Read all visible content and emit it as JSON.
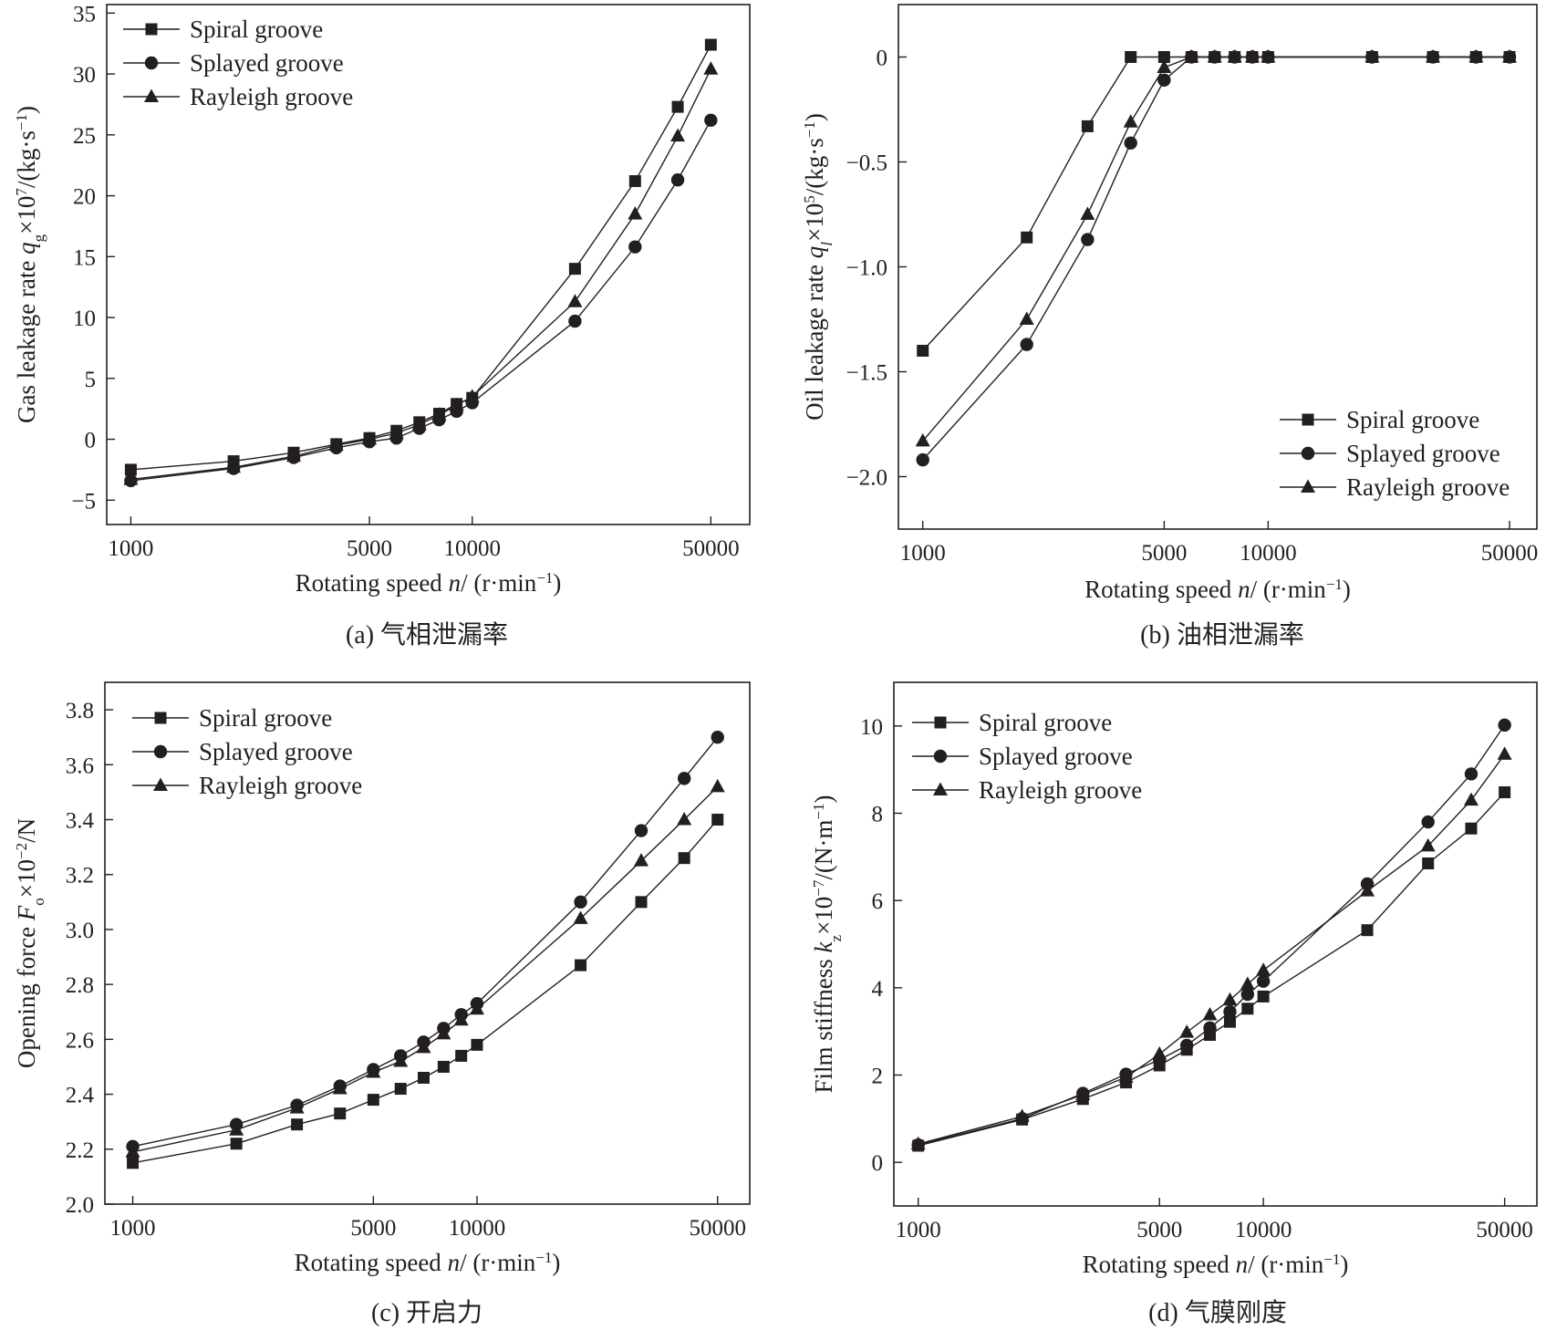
{
  "chart_data": [
    {
      "type": "line",
      "panel": "a",
      "xscale": "log",
      "x": [
        1000,
        2000,
        3000,
        4000,
        5000,
        6000,
        7000,
        8000,
        9000,
        10000,
        20000,
        30000,
        40000,
        50000
      ],
      "xticks": [
        1000,
        5000,
        10000,
        50000
      ],
      "xtick_labels": [
        "1000",
        "5000",
        "10000",
        "50000"
      ],
      "xlim": [
        850,
        65000
      ],
      "ylim": [
        -7,
        35.7
      ],
      "yticks": [
        -5,
        0,
        5,
        10,
        15,
        20,
        25,
        30,
        35
      ],
      "ytick_labels": [
        "−5",
        "0",
        "5",
        "10",
        "15",
        "20",
        "25",
        "30",
        "35"
      ],
      "xlabel": "Rotating speed n/ (r·min⁻¹)",
      "ylabel": "Gas leakage rate qg×10⁷/(kg·s⁻¹)",
      "caption": "(a) 气相泄漏率",
      "legend_position": "top-left",
      "series": [
        {
          "name": "Spiral groove",
          "marker": "square",
          "values": [
            -2.5,
            -1.8,
            -1.1,
            -0.4,
            0.1,
            0.7,
            1.4,
            2.1,
            2.9,
            3.4,
            14.0,
            21.2,
            27.3,
            32.4
          ]
        },
        {
          "name": "Splayed groove",
          "marker": "circle",
          "values": [
            -3.4,
            -2.4,
            -1.5,
            -0.7,
            -0.2,
            0.1,
            0.9,
            1.6,
            2.3,
            3.0,
            9.7,
            15.8,
            21.3,
            26.2
          ]
        },
        {
          "name": "Rayleigh groove",
          "marker": "triangle",
          "values": [
            -3.3,
            -2.3,
            -1.4,
            -0.5,
            0.0,
            0.5,
            1.2,
            2.0,
            2.8,
            3.5,
            11.3,
            18.5,
            24.9,
            30.4
          ]
        }
      ]
    },
    {
      "type": "line",
      "panel": "b",
      "xscale": "log",
      "x": [
        1000,
        2000,
        3000,
        4000,
        5000,
        6000,
        7000,
        8000,
        9000,
        10000,
        20000,
        30000,
        40000,
        50000
      ],
      "xticks": [
        1000,
        5000,
        10000,
        50000
      ],
      "xtick_labels": [
        "1000",
        "5000",
        "10000",
        "50000"
      ],
      "xlim": [
        850,
        60000
      ],
      "ylim": [
        -2.25,
        0.25
      ],
      "yticks": [
        -2.0,
        -1.5,
        -1.0,
        -0.5,
        0
      ],
      "ytick_labels": [
        "−2.0",
        "−1.5",
        "−1.0",
        "−0.5",
        "0"
      ],
      "xlabel": "Rotating speed n/ (r·min⁻¹)",
      "ylabel": "Oil leakage rate ql×10⁵/(kg·s⁻¹)",
      "caption": "(b) 油相泄漏率",
      "legend_position": "bottom-right",
      "series": [
        {
          "name": "Spiral groove",
          "marker": "square",
          "values": [
            -1.4,
            -0.86,
            -0.33,
            0.0,
            0.0,
            0.0,
            0.0,
            0.0,
            0.0,
            0.0,
            0.0,
            0.0,
            0.0,
            0.0
          ]
        },
        {
          "name": "Splayed groove",
          "marker": "circle",
          "values": [
            -1.92,
            -1.37,
            -0.87,
            -0.41,
            -0.11,
            0.0,
            0.0,
            0.0,
            0.0,
            0.0,
            0.0,
            0.0,
            0.0,
            0.0
          ]
        },
        {
          "name": "Rayleigh groove",
          "marker": "triangle",
          "values": [
            -1.83,
            -1.25,
            -0.75,
            -0.31,
            -0.05,
            0.0,
            0.0,
            0.0,
            0.0,
            0.0,
            0.0,
            0.0,
            0.0,
            0.0
          ]
        }
      ]
    },
    {
      "type": "line",
      "panel": "c",
      "xscale": "log",
      "x": [
        1000,
        2000,
        3000,
        4000,
        5000,
        6000,
        7000,
        8000,
        9000,
        10000,
        20000,
        30000,
        40000,
        50000
      ],
      "xticks": [
        1000,
        5000,
        10000,
        50000
      ],
      "xtick_labels": [
        "1000",
        "5000",
        "10000",
        "50000"
      ],
      "xlim": [
        830,
        62000
      ],
      "ylim": [
        2.0,
        3.9
      ],
      "yticks": [
        2.0,
        2.2,
        2.4,
        2.6,
        2.8,
        3.0,
        3.2,
        3.4,
        3.6,
        3.8
      ],
      "ytick_labels": [
        "2.0",
        "2.2",
        "2.4",
        "2.6",
        "2.8",
        "3.0",
        "3.2",
        "3.4",
        "3.6",
        "3.8"
      ],
      "xlabel": "Rotating speed n/ (r·min⁻¹)",
      "ylabel": "Opening force Fo×10⁻²/N",
      "caption": "(c) 开启力",
      "legend_position": "top-left",
      "series": [
        {
          "name": "Spiral groove",
          "marker": "square",
          "values": [
            2.15,
            2.22,
            2.29,
            2.33,
            2.38,
            2.42,
            2.46,
            2.5,
            2.54,
            2.58,
            2.87,
            3.1,
            3.26,
            3.4
          ]
        },
        {
          "name": "Splayed groove",
          "marker": "circle",
          "values": [
            2.21,
            2.29,
            2.36,
            2.43,
            2.49,
            2.54,
            2.59,
            2.64,
            2.69,
            2.73,
            3.1,
            3.36,
            3.55,
            3.7
          ]
        },
        {
          "name": "Rayleigh groove",
          "marker": "triangle",
          "values": [
            2.19,
            2.27,
            2.35,
            2.42,
            2.48,
            2.52,
            2.57,
            2.62,
            2.67,
            2.71,
            3.04,
            3.25,
            3.4,
            3.52
          ]
        }
      ]
    },
    {
      "type": "line",
      "panel": "d",
      "xscale": "log",
      "x": [
        1000,
        2000,
        3000,
        4000,
        5000,
        6000,
        7000,
        8000,
        9000,
        10000,
        20000,
        30000,
        40000,
        50000
      ],
      "xticks": [
        1000,
        5000,
        10000,
        50000
      ],
      "xtick_labels": [
        "1000",
        "5000",
        "10000",
        "50000"
      ],
      "xlim": [
        850,
        62000
      ],
      "ylim": [
        -1,
        11
      ],
      "yticks": [
        0,
        2,
        4,
        6,
        8,
        10
      ],
      "ytick_labels": [
        "0",
        "2",
        "4",
        "6",
        "8",
        "10"
      ],
      "xlabel": "Rotating speed n/ (r·min⁻¹)",
      "ylabel": "Film stiffness kz×10⁻⁷/(N·m⁻¹)",
      "caption": "(d) 气膜刚度",
      "legend_position": "top-left",
      "series": [
        {
          "name": "Spiral groove",
          "marker": "square",
          "values": [
            0.38,
            0.98,
            1.45,
            1.83,
            2.22,
            2.58,
            2.92,
            3.22,
            3.52,
            3.8,
            5.32,
            6.85,
            7.65,
            8.48
          ]
        },
        {
          "name": "Splayed groove",
          "marker": "circle",
          "values": [
            0.4,
            1.0,
            1.58,
            2.02,
            2.35,
            2.68,
            3.08,
            3.45,
            3.85,
            4.15,
            6.38,
            7.8,
            8.9,
            10.02
          ]
        },
        {
          "name": "Rayleigh groove",
          "marker": "triangle",
          "values": [
            0.42,
            1.05,
            1.55,
            1.95,
            2.48,
            2.98,
            3.38,
            3.72,
            4.08,
            4.4,
            6.22,
            7.25,
            8.3,
            9.35
          ]
        }
      ]
    }
  ]
}
